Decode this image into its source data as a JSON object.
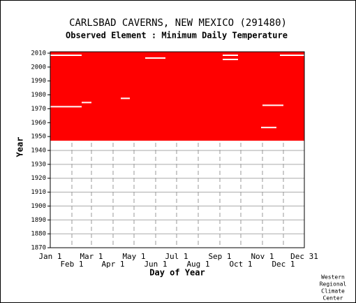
{
  "chart_data": {
    "type": "availability",
    "title": "CARLSBAD CAVERNS, NEW MEXICO   (291480)",
    "subtitle": "Observed Element : Minimum Daily Temperature",
    "xlabel": "Day of Year",
    "ylabel": "Year",
    "credit": [
      "Western",
      "Regional",
      "Climate",
      "Center"
    ],
    "xlim": [
      1,
      365
    ],
    "ylim": [
      1870,
      2011
    ],
    "xticks": [
      {
        "value": 1,
        "label": "Jan 1"
      },
      {
        "value": 32,
        "label": "Feb 1"
      },
      {
        "value": 60,
        "label": "Mar 1"
      },
      {
        "value": 91,
        "label": "Apr 1"
      },
      {
        "value": 121,
        "label": "May 1"
      },
      {
        "value": 152,
        "label": "Jun 1"
      },
      {
        "value": 182,
        "label": "Jul 1"
      },
      {
        "value": 213,
        "label": "Aug 1"
      },
      {
        "value": 244,
        "label": "Sep 1"
      },
      {
        "value": 274,
        "label": "Oct 1"
      },
      {
        "value": 305,
        "label": "Nov 1"
      },
      {
        "value": 335,
        "label": "Dec 1"
      },
      {
        "value": 365,
        "label": "Dec 31"
      }
    ],
    "yticks": [
      1870,
      1880,
      1890,
      1900,
      1910,
      1920,
      1930,
      1940,
      1950,
      1960,
      1970,
      1980,
      1990,
      2000,
      2010
    ],
    "color": "#ff0000",
    "gap_color": "#ffffff",
    "coverage": {
      "x": [
        1,
        365
      ],
      "y": [
        1947,
        2011
      ]
    },
    "gaps": [
      [
        1,
        46,
        1971
      ],
      [
        46,
        60,
        1974
      ],
      [
        102,
        115,
        1977
      ],
      [
        303,
        325,
        1956
      ],
      [
        248,
        270,
        2005
      ],
      [
        1,
        46,
        2008
      ],
      [
        305,
        335,
        1972
      ],
      [
        137,
        166,
        2006
      ],
      [
        248,
        270,
        2008
      ],
      [
        330,
        365,
        2008
      ]
    ]
  }
}
